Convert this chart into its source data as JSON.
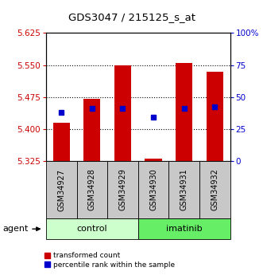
{
  "title": "GDS3047 / 215125_s_at",
  "categories": [
    "GSM34927",
    "GSM34928",
    "GSM34929",
    "GSM34930",
    "GSM34931",
    "GSM34932"
  ],
  "bar_values": [
    5.415,
    5.47,
    5.55,
    5.33,
    5.555,
    5.535
  ],
  "bar_base": 5.325,
  "percentile_values": [
    38,
    41,
    41,
    34,
    41,
    42
  ],
  "groups": [
    {
      "label": "control",
      "indices": [
        0,
        1,
        2
      ],
      "color": "#ccffcc"
    },
    {
      "label": "imatinib",
      "indices": [
        3,
        4,
        5
      ],
      "color": "#66ee66"
    }
  ],
  "ylim_left": [
    5.325,
    5.625
  ],
  "ylim_right": [
    0,
    100
  ],
  "yticks_left": [
    5.325,
    5.4,
    5.475,
    5.55,
    5.625
  ],
  "yticks_right": [
    0,
    25,
    50,
    75,
    100
  ],
  "ytick_labels_right": [
    "0",
    "25",
    "50",
    "75",
    "100%"
  ],
  "bar_color": "#cc0000",
  "dot_color": "#0000cc",
  "bar_width": 0.55,
  "left_label_color": "#cc0000",
  "right_label_color": "#0000cc",
  "xlabel_gray_bg": "#c8c8c8",
  "group_label_agent": "agent",
  "legend_labels": [
    "transformed count",
    "percentile rank within the sample"
  ]
}
